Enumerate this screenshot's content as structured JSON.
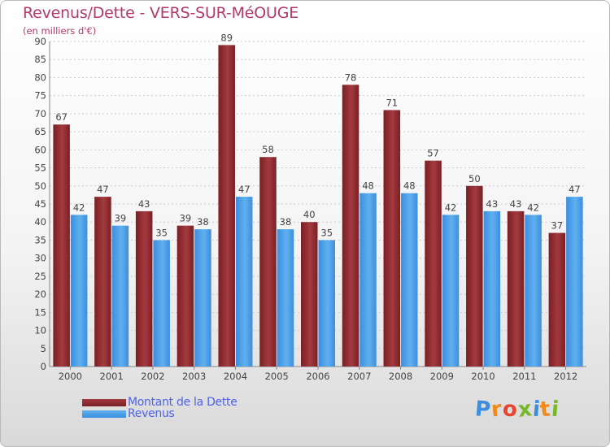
{
  "title": "Revenus/Dette - VERS-SUR-MéOUGE",
  "subtitle": "(en milliers d'€)",
  "legend": {
    "dette_label": "Montant de la Dette",
    "revenus_label": "Revenus"
  },
  "logo": {
    "chars": [
      "P",
      "r",
      "o",
      "x",
      "i",
      "t",
      "i"
    ]
  },
  "colors": {
    "dette": "#7a1f25",
    "dette_light": "#a33a3f",
    "revenus": "#3d8ede",
    "revenus_light": "#5fb0ef",
    "axis_text": "#444444",
    "grid": "#cccccc"
  },
  "chart_data": {
    "type": "bar",
    "title": "Revenus/Dette - VERS-SUR-MéOUGE",
    "ylabel": "(en milliers d'€)",
    "xlabel": "",
    "ylim": [
      0,
      90
    ],
    "ytick_step": 5,
    "categories": [
      "2000",
      "2001",
      "2002",
      "2003",
      "2004",
      "2005",
      "2006",
      "2007",
      "2008",
      "2009",
      "2010",
      "2011",
      "2012"
    ],
    "series": [
      {
        "name": "Montant de la Dette",
        "values": [
          67,
          47,
          43,
          39,
          89,
          58,
          40,
          78,
          71,
          57,
          50,
          43,
          37
        ]
      },
      {
        "name": "Revenus",
        "values": [
          42,
          39,
          35,
          38,
          47,
          38,
          35,
          48,
          48,
          42,
          43,
          42,
          47
        ]
      }
    ],
    "legend_position": "bottom-left",
    "grid": true
  }
}
